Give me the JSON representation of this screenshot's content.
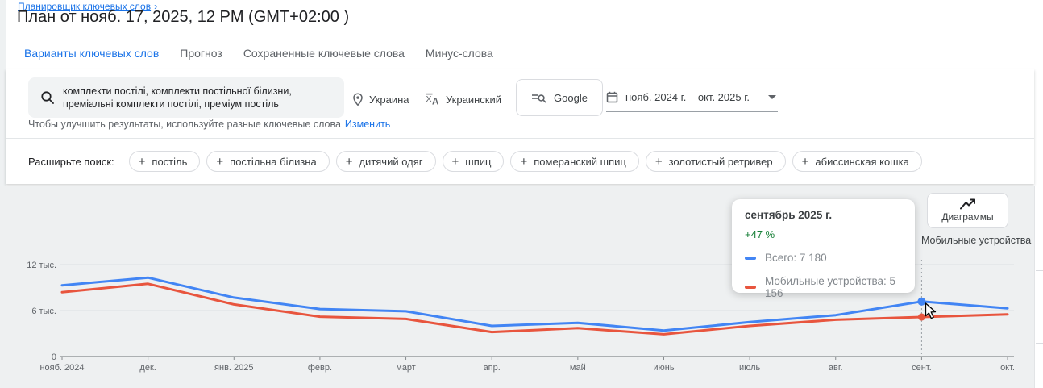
{
  "header": {
    "breadcrumb": "Планировщик ключевых слов",
    "breadcrumb_chevron": "›",
    "title": "План от нояб. 17, 2025, 12 PM (GMT+02:00 )"
  },
  "tabs": [
    {
      "label": "Варианты ключевых слов",
      "active": true
    },
    {
      "label": "Прогноз",
      "active": false
    },
    {
      "label": "Сохраненные ключевые слова",
      "active": false
    },
    {
      "label": "Минус-слова",
      "active": false
    }
  ],
  "filters": {
    "keywords_line1": "комплекти постілі, комплекти постільної білизни,",
    "keywords_line2": "преміальні комплекти постілі, преміум постіль",
    "location": "Украина",
    "language": "Украинский",
    "network": "Google",
    "date_range": "нояб. 2024 г. – окт. 2025 г.",
    "helper_text": "Чтобы улучшить результаты, используйте разные ключевые слова",
    "helper_link": "Изменить"
  },
  "expand": {
    "label": "Расширьте поиск:",
    "chips": [
      "постіль",
      "постільна білизна",
      "дитячий одяг",
      "шпиц",
      "померанский шпиц",
      "золотистый ретривер",
      "абиссинская кошка"
    ]
  },
  "chart_controls": {
    "charts_button": "Диаграммы",
    "hover_label": "Мобильные устройства"
  },
  "tooltip": {
    "title": "сентябрь 2025 г.",
    "change": "+47 %",
    "rows": [
      {
        "color": "#4285f4",
        "label": "Всего: 7 180"
      },
      {
        "color": "#e8553e",
        "label": "Мобильные устройства: 5 156"
      }
    ]
  },
  "colors": {
    "accent": "#1a73e8",
    "total_line": "#4285f4",
    "mobile_line": "#e8553e",
    "positive_change": "#188038",
    "chart_background": "#eef0f1"
  },
  "chart_data": {
    "type": "line",
    "title": "",
    "xlabel": "",
    "ylabel": "",
    "x": [
      "нояб. 2024",
      "дек.",
      "янв. 2025",
      "февр.",
      "март",
      "апр.",
      "май",
      "июнь",
      "июль",
      "авг.",
      "сент.",
      "окт."
    ],
    "series": [
      {
        "name": "Всего",
        "color": "#4285f4",
        "values": [
          9300,
          10300,
          7700,
          6200,
          5900,
          4000,
          4400,
          3400,
          4500,
          5400,
          7180,
          6300
        ]
      },
      {
        "name": "Мобильные устройства",
        "color": "#e8553e",
        "values": [
          8400,
          9500,
          6800,
          5200,
          4900,
          3200,
          3700,
          2900,
          4000,
          4800,
          5156,
          5500
        ]
      }
    ],
    "y_ticks": [
      {
        "value": 0,
        "label": "0"
      },
      {
        "value": 6000,
        "label": "6 тыс."
      },
      {
        "value": 12000,
        "label": "12 тыс."
      }
    ],
    "ylim": [
      0,
      13000
    ],
    "grid": true,
    "legend_position": "tooltip",
    "highlight_index": 10,
    "highlight_values": {
      "Всего": 7180,
      "Мобильные устройства": 5156
    }
  }
}
